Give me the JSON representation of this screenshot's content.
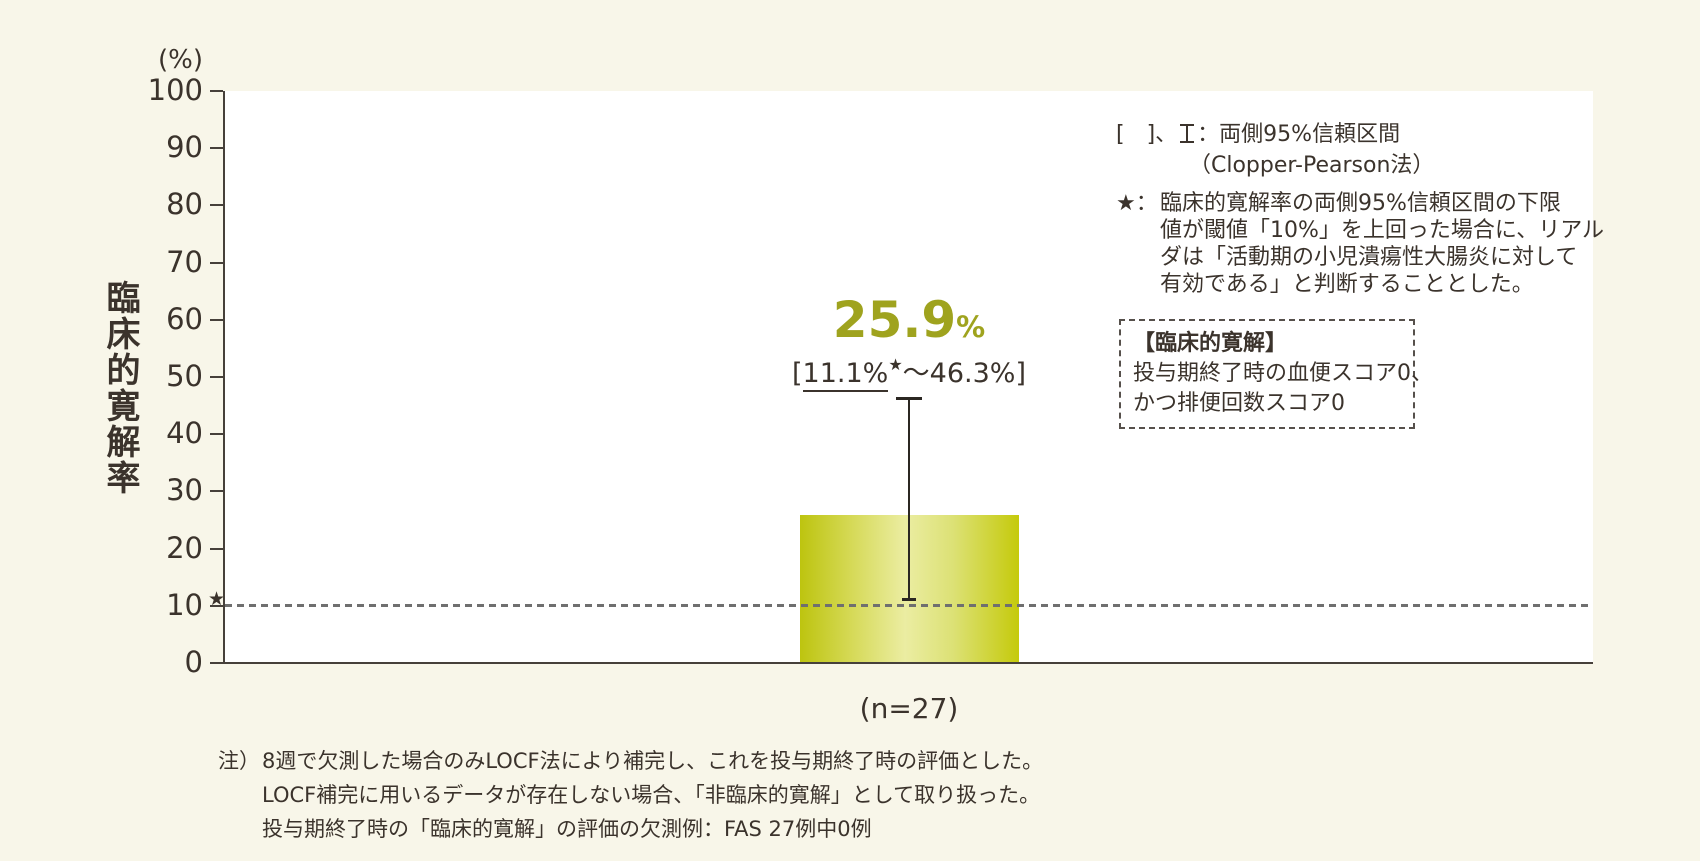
{
  "colors": {
    "background": "#f8f6e9",
    "plot_background": "#ffffff",
    "text": "#3b332c",
    "accent_olive": "#9fa31e",
    "axis": "#46403a",
    "threshold_gray": "#6f6f6f",
    "bar_gradient_stops": [
      "#bdc40f",
      "#d4d852",
      "#ebeda2",
      "#dce175",
      "#c5ca0b"
    ],
    "bar_gradient_positions": [
      0,
      22,
      48,
      70,
      100
    ]
  },
  "chart_data": {
    "type": "bar",
    "title": "",
    "xlabel": "",
    "ylabel": "臨床的寛解率",
    "unit_label": "(%)",
    "ylim": [
      0,
      100
    ],
    "yticks": [
      0,
      10,
      20,
      30,
      40,
      50,
      60,
      70,
      80,
      90,
      100
    ],
    "grid": "off",
    "threshold_value": 10,
    "threshold_star": "★",
    "categories": [
      "(n=27)"
    ],
    "values": [
      25.9
    ],
    "n": 27,
    "value_label": {
      "number": "25.9",
      "unit": "%"
    },
    "ci": {
      "low_value": 11.1,
      "high_value": 46.3,
      "open": "[",
      "low": "11.1%",
      "star": "★",
      "tilde": "～",
      "high": "46.3%",
      "close": "]"
    }
  },
  "legend": {
    "ci_prefix": "[　]、",
    "ci_suffix": "：両側95%信頼区間",
    "ci_line2": "（Clopper-Pearson法）",
    "star_marker": "★：",
    "star_lines": [
      "臨床的寛解率の両側95%信頼区間の下限",
      "値が閾値「10%」を上回った場合に、リアル",
      "ダは「活動期の小児潰瘍性大腸炎に対して",
      "有効である」と判断することとした。"
    ]
  },
  "definition_box": {
    "title": "【臨床的寛解】",
    "lines": [
      "投与期終了時の血便スコア0、",
      "かつ排便回数スコア0"
    ]
  },
  "footnote": {
    "marker": "注）",
    "lines": [
      "8週で欠測した場合のみLOCF法により補完し、これを投与期終了時の評価とした。",
      "LOCF補完に用いるデータが存在しない場合、「非臨床的寛解」として取り扱った。",
      "投与期終了時の「臨床的寛解」の評価の欠測例：FAS 27例中0例"
    ]
  }
}
